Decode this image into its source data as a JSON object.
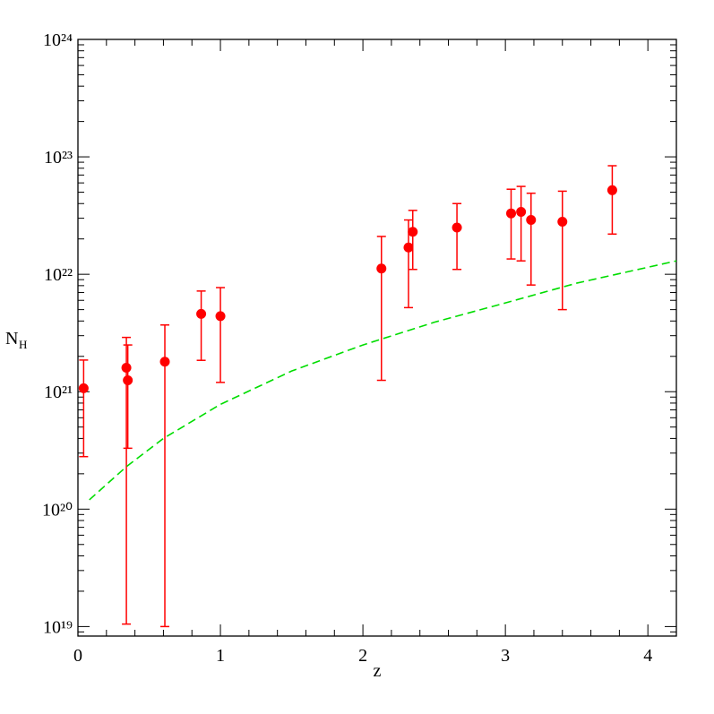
{
  "chart_data": {
    "type": "scatter",
    "x_label": "z",
    "y_label": "N",
    "y_label_subscript": "H",
    "y_scale": "log",
    "xlim": [
      0,
      4.2
    ],
    "xticks": [
      0,
      1,
      2,
      3,
      4
    ],
    "ylim": [
      8.3e+18,
      1e+24
    ],
    "yticks": [
      {
        "value": 1e+19,
        "label": "10¹⁹"
      },
      {
        "value": 1e+20,
        "label": "10²⁰"
      },
      {
        "value": 1e+21,
        "label": "10²¹"
      },
      {
        "value": 1e+22,
        "label": "10²²"
      },
      {
        "value": 1e+23,
        "label": "10²³"
      },
      {
        "value": 1e+24,
        "label": "10²⁴"
      }
    ],
    "series": [
      {
        "type": "scatter",
        "color": "#ff0000",
        "x": [
          0.04,
          0.34,
          0.35,
          0.61,
          0.865,
          1.0,
          2.13,
          2.32,
          2.35,
          2.66,
          3.04,
          3.11,
          3.18,
          3.4,
          3.75
        ],
        "values": [
          1.07e+21,
          1.6e+21,
          1.25e+21,
          1.8e+21,
          4.6e+21,
          4.4e+21,
          1.12e+22,
          1.69e+22,
          2.3e+22,
          2.5e+22,
          3.3e+22,
          3.4e+22,
          2.9e+22,
          2.8e+22,
          5.2e+22
        ],
        "low": [
          2.8e+20,
          1.05e+19,
          3.3e+20,
          1e+19,
          1.85e+21,
          1.2e+21,
          1.25e+21,
          5.2e+21,
          1.1e+22,
          1.1e+22,
          1.35e+22,
          1.3e+22,
          8.1e+21,
          5e+21,
          2.2e+22
        ],
        "high": [
          1.86e+21,
          2.9e+21,
          2.5e+21,
          3.7e+21,
          7.2e+21,
          7.7e+21,
          2.1e+22,
          2.9e+22,
          3.5e+22,
          4e+22,
          5.3e+22,
          5.6e+22,
          4.9e+22,
          5.1e+22,
          8.4e+22
        ]
      },
      {
        "type": "line",
        "color": "#00dd00",
        "dashed": true,
        "x": [
          0.08,
          0.34,
          0.6,
          1.0,
          1.5,
          2.0,
          2.5,
          3.0,
          3.5,
          4.2
        ],
        "values": [
          1.2e+20,
          2.3e+20,
          4e+20,
          7.8e+20,
          1.5e+21,
          2.5e+21,
          3.9e+21,
          5.7e+21,
          8.4e+21,
          1.3e+22
        ]
      }
    ]
  }
}
